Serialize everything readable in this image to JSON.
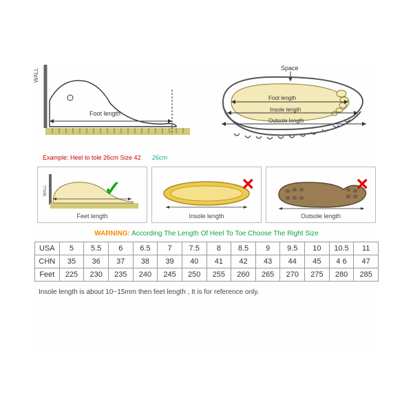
{
  "diagrams": {
    "wall_label": "WALL",
    "foot_length_label": "Foot length",
    "space_label": "Space",
    "insole_label": "Insole length",
    "outsole_label": "Outsole length",
    "example_text": "Example: Heel to tole 26cm Size 42",
    "example_value": "26cm"
  },
  "midboxes": [
    {
      "caption": "Feet length",
      "mark": "check"
    },
    {
      "caption": "Insole length",
      "mark": "cross"
    },
    {
      "caption": "Outsole length",
      "mark": "cross"
    }
  ],
  "warning": {
    "label": "WARNING:",
    "text": "According The Length Of Heel To Toe Choose The Right Size"
  },
  "size_table": {
    "rows": [
      {
        "label": "USA",
        "cells": [
          "5",
          "5.5",
          "6",
          "6.5",
          "7",
          "7.5",
          "8",
          "8.5",
          "9",
          "9.5",
          "10",
          "10.5",
          "11"
        ]
      },
      {
        "label": "CHN",
        "cells": [
          "35",
          "36",
          "37",
          "38",
          "39",
          "40",
          "41",
          "42",
          "43",
          "44",
          "45",
          "4 6",
          "47"
        ]
      },
      {
        "label": "Feet",
        "cells": [
          "225",
          "230",
          "235",
          "240",
          "245",
          "250",
          "255",
          "260",
          "265",
          "270",
          "275",
          "280",
          "285"
        ]
      }
    ],
    "colors": {
      "border": "#999999",
      "text": "#333333"
    }
  },
  "footnote": "Insole length is about 10~15mm then feet length , It is for reference only.",
  "colors": {
    "warn_label": "#ff8800",
    "warn_text": "#14a04a",
    "example_red": "#cc0000",
    "example_teal": "#1aa9a0",
    "check": "#11aa11",
    "cross": "#e60000",
    "box_border": "#bbbbbb",
    "ruler": "#d2c97a",
    "foot_fill": "#f4e9b8",
    "sole_fill": "#efc94c",
    "outsole_fill": "#9a7d54"
  }
}
